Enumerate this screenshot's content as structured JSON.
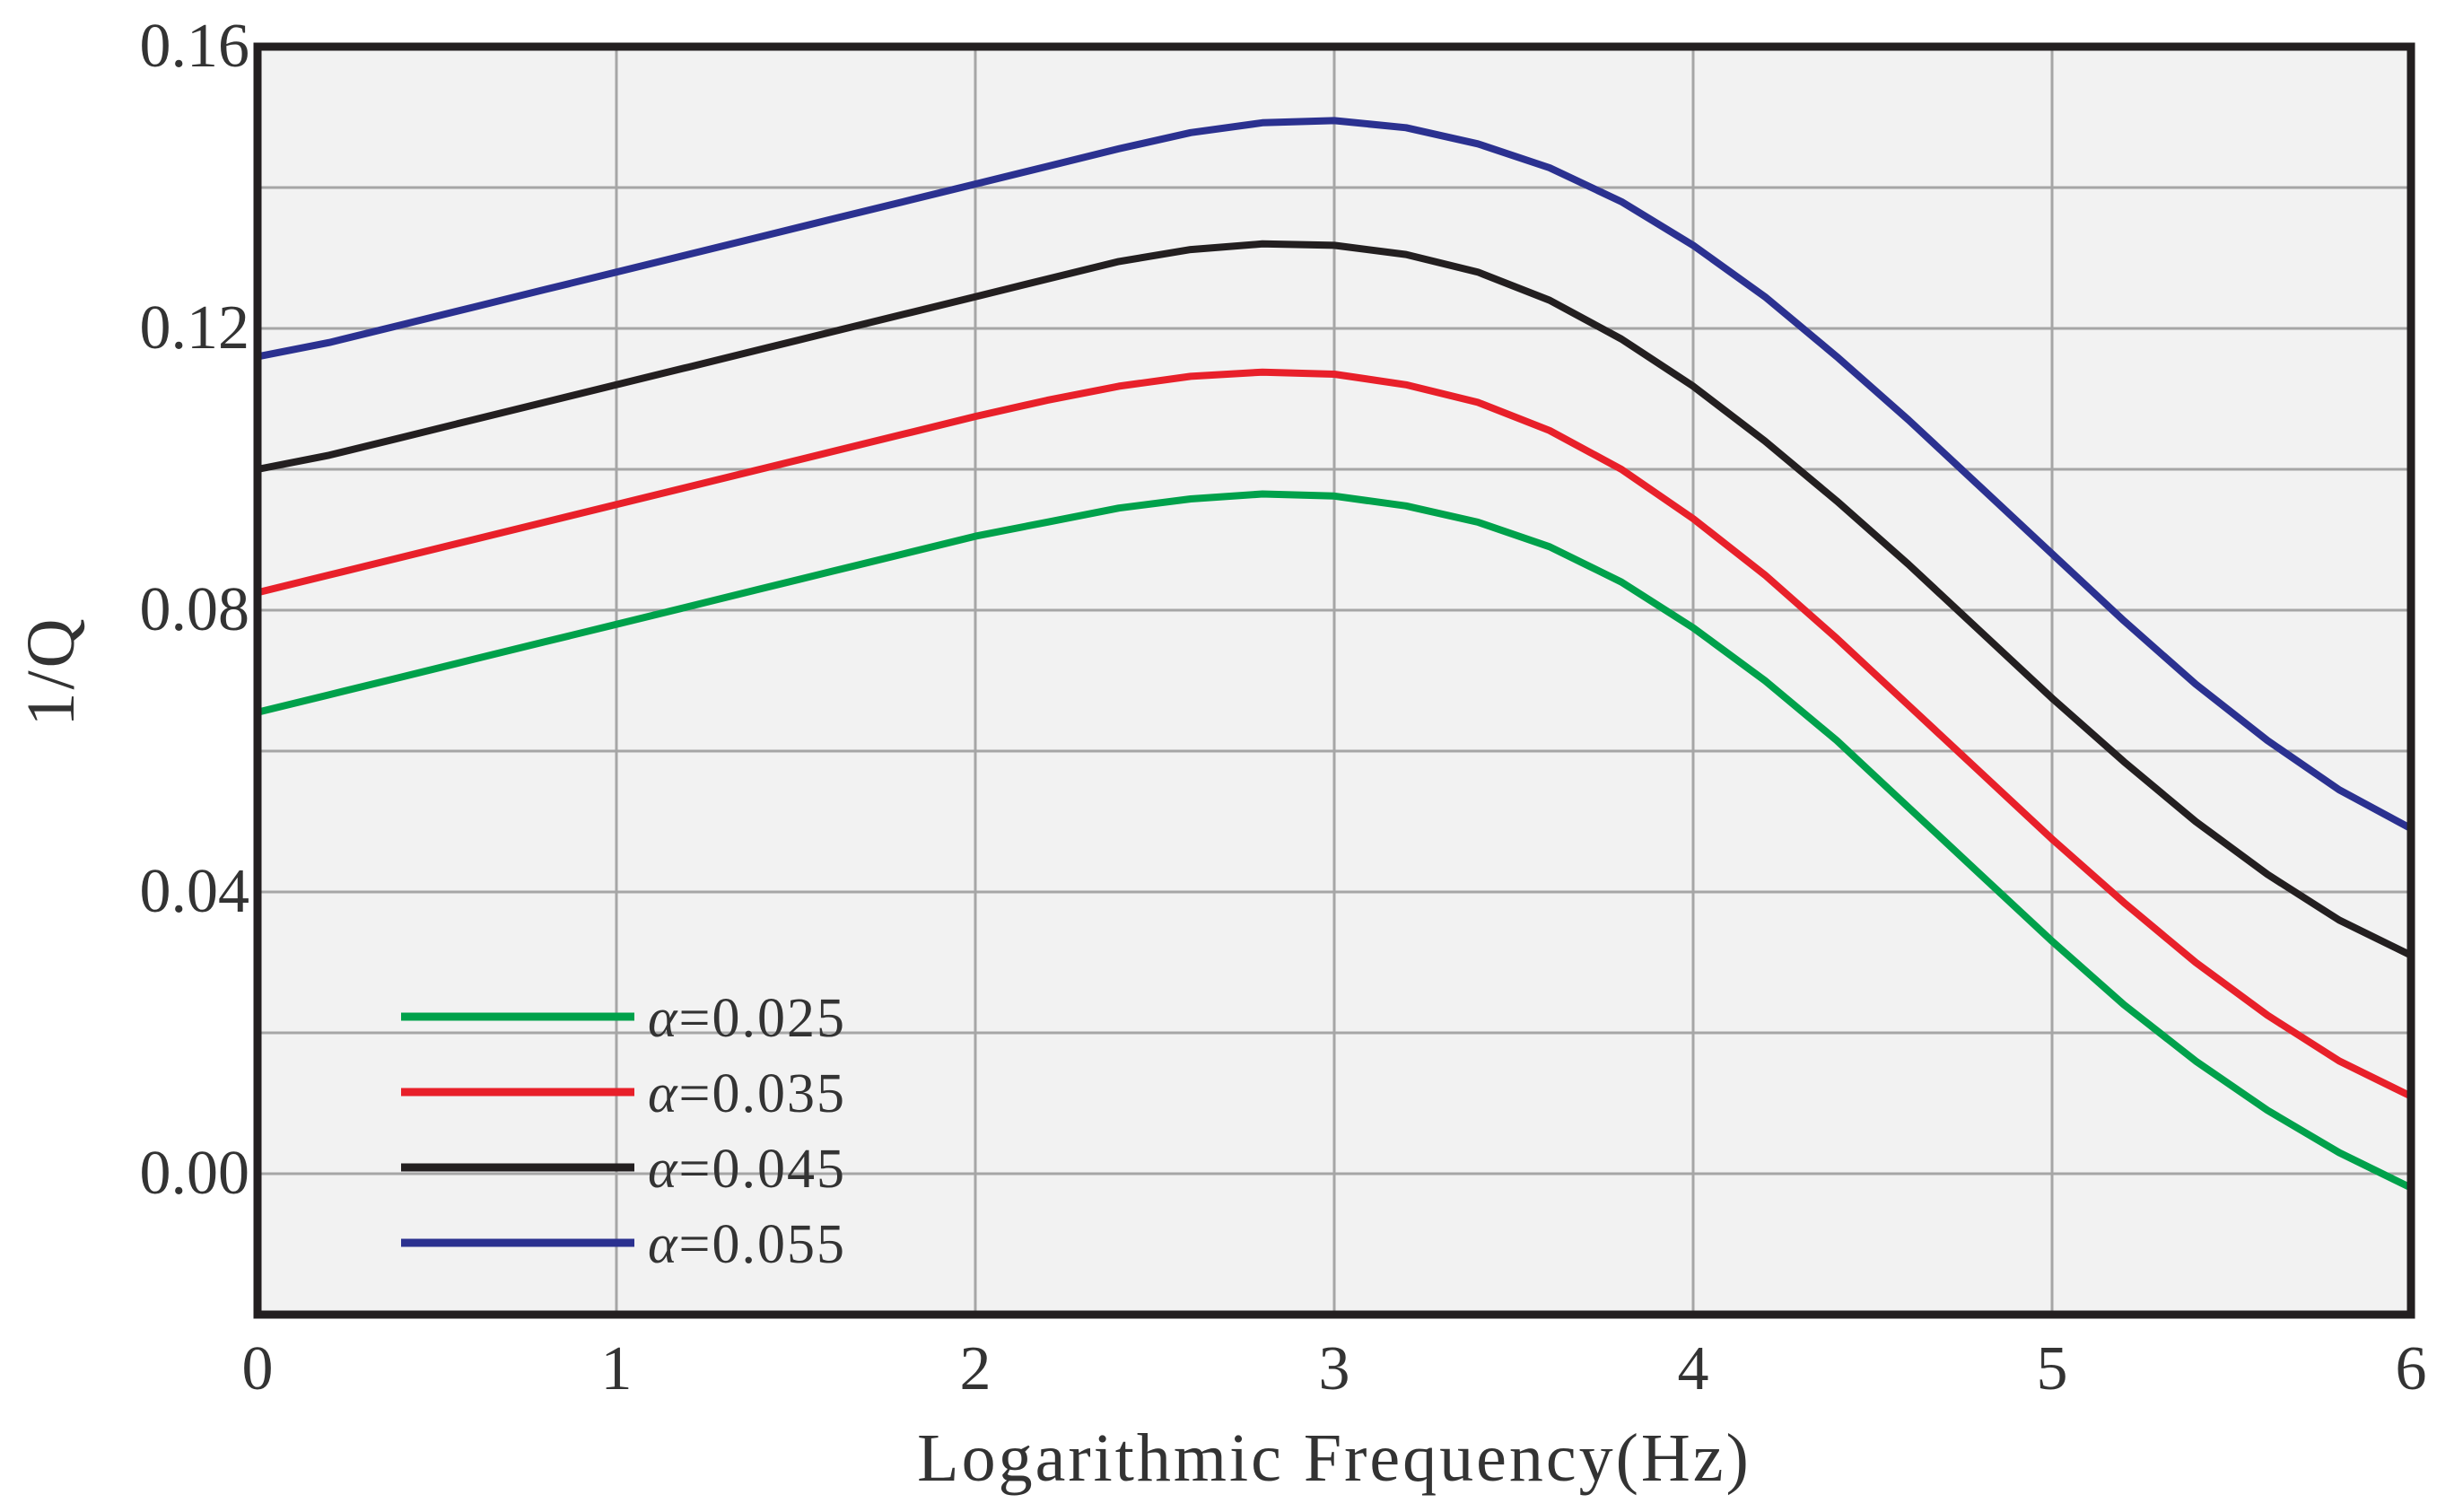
{
  "chart_data": {
    "type": "line",
    "title": "",
    "xlabel": "Logarithmic Frequency(Hz)",
    "ylabel": "1/Q",
    "xlim": [
      0,
      6
    ],
    "ylim": [
      -0.02,
      0.16
    ],
    "grid": true,
    "xticks": [
      0,
      1,
      2,
      3,
      4,
      5,
      6
    ],
    "xtick_labels": [
      "0",
      "1",
      "2",
      "3",
      "4",
      "5",
      "6"
    ],
    "yticks": [
      0.0,
      0.04,
      0.08,
      0.12,
      0.16
    ],
    "ytick_labels": [
      "0.00",
      "0.04",
      "0.08",
      "0.12",
      "0.16"
    ],
    "legend_position": "bottom-left",
    "x": [
      0,
      0.2,
      0.4,
      0.6,
      0.8,
      1.0,
      1.2,
      1.4,
      1.6,
      1.8,
      2.0,
      2.2,
      2.4,
      2.6,
      2.8,
      3.0,
      3.2,
      3.4,
      3.6,
      3.8,
      4.0,
      4.2,
      4.4,
      4.6,
      4.8,
      5.0,
      5.2,
      5.4,
      5.6,
      5.8,
      6.0
    ],
    "series": [
      {
        "name": "=0.025",
        "symbol": "α",
        "color": "#00a14b",
        "values": [
          0.0655,
          0.068,
          0.0705,
          0.073,
          0.0755,
          0.078,
          0.0805,
          0.083,
          0.0855,
          0.088,
          0.0905,
          0.0925,
          0.0945,
          0.0958,
          0.0965,
          0.0962,
          0.0948,
          0.0925,
          0.089,
          0.084,
          0.0775,
          0.07,
          0.0615,
          0.052,
          0.0425,
          0.033,
          0.024,
          0.016,
          0.009,
          0.003,
          -0.002
        ]
      },
      {
        "name": "=0.035",
        "symbol": "α",
        "color": "#e8202a",
        "values": [
          0.0825,
          0.085,
          0.0875,
          0.09,
          0.0925,
          0.095,
          0.0975,
          0.1,
          0.1025,
          0.105,
          0.1075,
          0.1098,
          0.1118,
          0.1132,
          0.1138,
          0.1135,
          0.112,
          0.1095,
          0.1055,
          0.1,
          0.093,
          0.085,
          0.076,
          0.0665,
          0.057,
          0.0475,
          0.0385,
          0.03,
          0.0225,
          0.016,
          0.011
        ]
      },
      {
        "name": "=0.045",
        "symbol": "α",
        "color": "#231f20",
        "values": [
          0.1,
          0.102,
          0.1045,
          0.107,
          0.1095,
          0.112,
          0.1145,
          0.117,
          0.1195,
          0.122,
          0.1245,
          0.127,
          0.1295,
          0.1312,
          0.132,
          0.1318,
          0.1305,
          0.128,
          0.124,
          0.1185,
          0.1118,
          0.104,
          0.0955,
          0.0865,
          0.077,
          0.0675,
          0.0585,
          0.05,
          0.0425,
          0.036,
          0.031
        ]
      },
      {
        "name": "=0.055",
        "symbol": "α",
        "color": "#2b3190",
        "values": [
          0.116,
          0.118,
          0.1205,
          0.123,
          0.1255,
          0.128,
          0.1305,
          0.133,
          0.1355,
          0.138,
          0.1405,
          0.143,
          0.1455,
          0.1478,
          0.1492,
          0.1495,
          0.1485,
          0.1462,
          0.1428,
          0.138,
          0.1318,
          0.1245,
          0.116,
          0.107,
          0.0975,
          0.088,
          0.0785,
          0.0695,
          0.0615,
          0.0545,
          0.049
        ]
      }
    ]
  }
}
